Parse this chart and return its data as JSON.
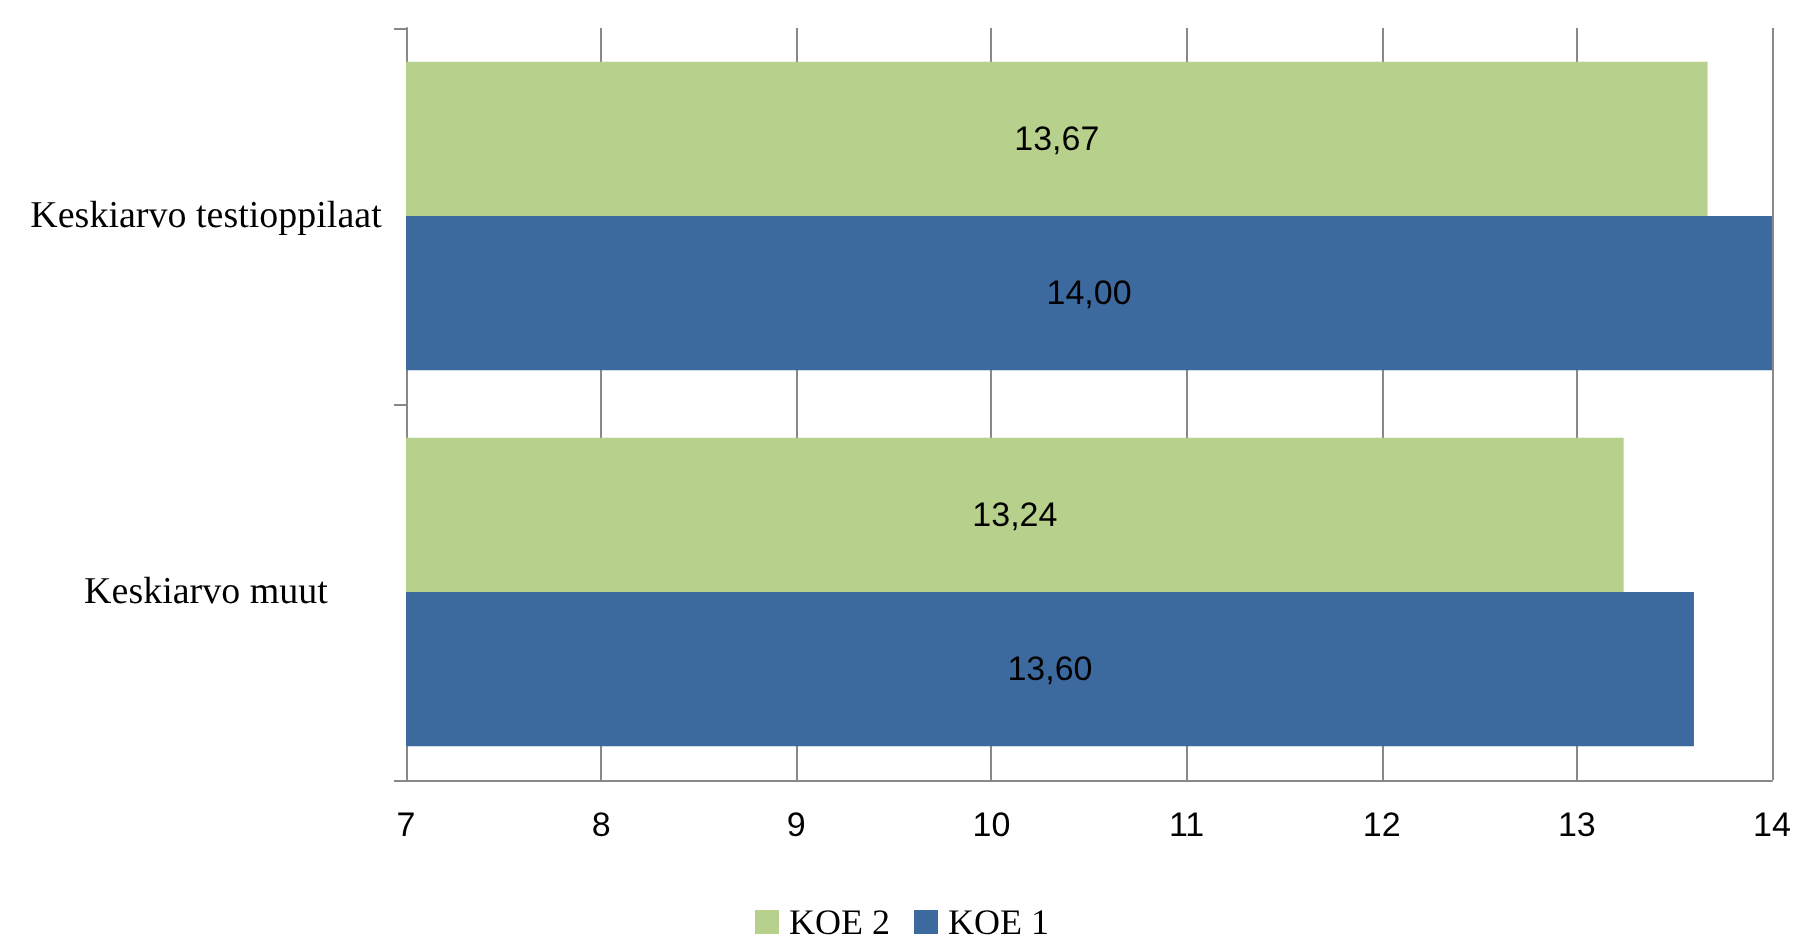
{
  "chart_data": {
    "type": "bar",
    "orientation": "horizontal",
    "categories": [
      "Keskiarvo testioppilaat",
      "Keskiarvo muut"
    ],
    "series": [
      {
        "name": "KOE 2",
        "color": "#b7d08b",
        "values": [
          13.67,
          13.24
        ],
        "value_labels": [
          "13,67",
          "13,24"
        ]
      },
      {
        "name": "KOE 1",
        "color": "#3d6a9e",
        "values": [
          14.0,
          13.6
        ],
        "value_labels": [
          "14,00",
          "13,60"
        ]
      }
    ],
    "xlim": [
      7,
      14
    ],
    "xticks": [
      7,
      8,
      9,
      10,
      11,
      12,
      13,
      14
    ],
    "grid": "x",
    "legend": "bottom"
  }
}
